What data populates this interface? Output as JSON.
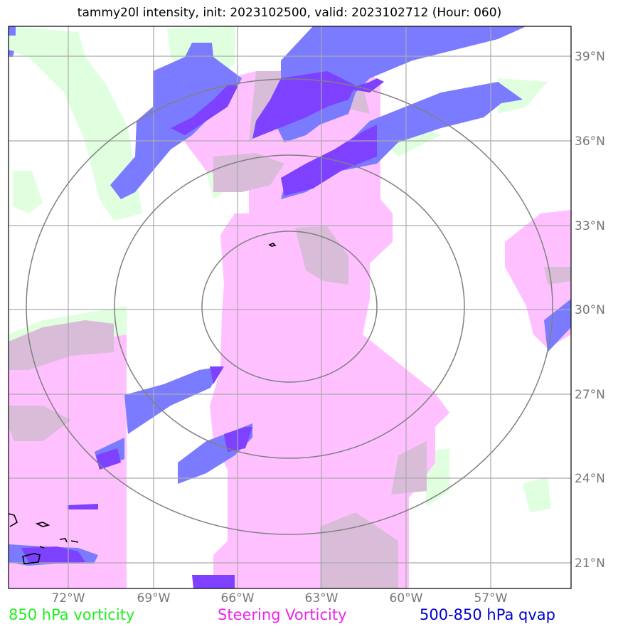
{
  "title": "tammy20l intensity, init: 2023102500, valid: 2023102712 (Hour: 060)",
  "legend": [
    {
      "label": "850 hPa vorticity",
      "color": "#22ee22"
    },
    {
      "label": "Steering Vorticity",
      "color": "#ee22ee"
    },
    {
      "label": "500-850 hPa qvap",
      "color": "#0000cc"
    }
  ],
  "lon_ticks": [
    "72°W",
    "69°W",
    "66°W",
    "63°W",
    "60°W",
    "57°W"
  ],
  "lat_ticks": [
    "39°N",
    "36°N",
    "33°N",
    "30°N",
    "27°N",
    "24°N",
    "21°N"
  ],
  "colors": {
    "vort850": "#dfffdf",
    "steering": "#ffc0ff",
    "overlap": "#d8bcd8",
    "qvap": "#7b7bff",
    "qvap_strong": "#7d41ff",
    "grid": "#aaaaaa",
    "rings": "#808080",
    "coast": "#000000"
  }
}
